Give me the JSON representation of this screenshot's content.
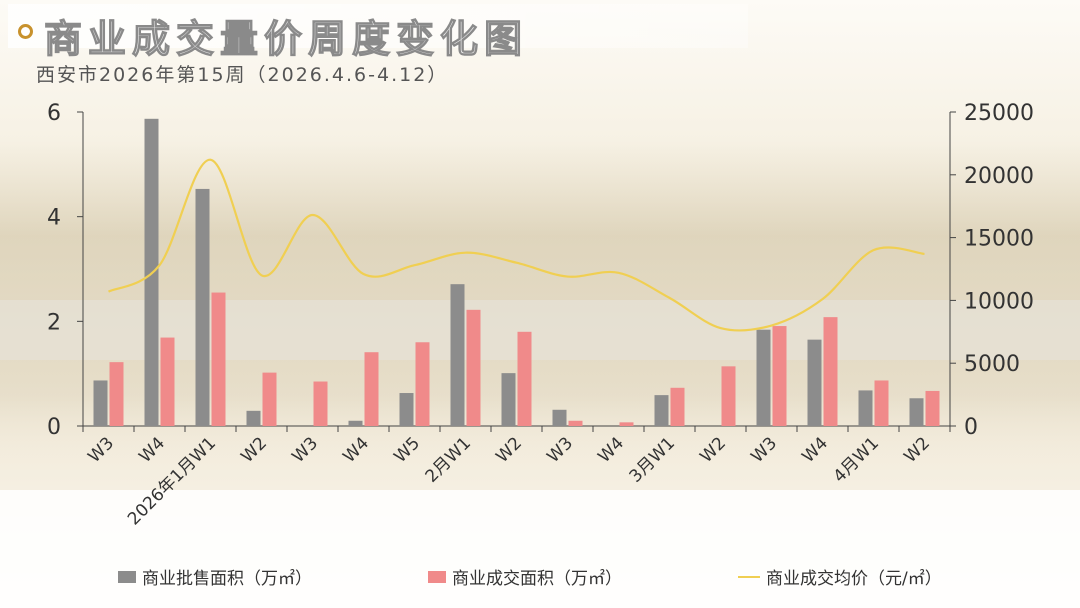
{
  "header": {
    "title": "商业成交量价周度变化图",
    "subtitle": "西安市2026年第15周（2026.4.6-4.12）"
  },
  "colors": {
    "supply": "#8c8c8c",
    "deal": "#f08a8a",
    "price": "#f0cf52",
    "accent": "#c8922d"
  },
  "chart_data": {
    "type": "bar",
    "categories": [
      "W3",
      "W4",
      "2026年1月W1",
      "W2",
      "W3",
      "W4",
      "W5",
      "2月W1",
      "W2",
      "W3",
      "W4",
      "3月W1",
      "W2",
      "W3",
      "W4",
      "4月W1",
      "W2"
    ],
    "series": [
      {
        "name": "商业批售面积（万㎡）",
        "type": "bar",
        "axis": "left",
        "values": [
          0.87,
          5.87,
          4.53,
          0.29,
          0,
          0.1,
          0.63,
          2.71,
          1.01,
          0.31,
          0,
          0.59,
          0,
          1.84,
          1.65,
          0.68,
          0.53
        ]
      },
      {
        "name": "商业成交面积（万㎡）",
        "type": "bar",
        "axis": "left",
        "values": [
          1.22,
          1.69,
          2.55,
          1.02,
          0.85,
          1.41,
          1.6,
          2.22,
          1.8,
          0.1,
          0.07,
          0.73,
          1.14,
          1.91,
          2.08,
          0.87,
          0.67
        ]
      },
      {
        "name": "商业成交均价（元/㎡）",
        "type": "line",
        "axis": "right",
        "values": [
          10700,
          12800,
          21200,
          12000,
          16800,
          12100,
          12800,
          13800,
          13000,
          11900,
          12200,
          10200,
          7800,
          8000,
          10100,
          14000,
          13700
        ]
      }
    ],
    "y_left": {
      "min": 0,
      "max": 6,
      "ticks": [
        0,
        2,
        4,
        6
      ]
    },
    "y_right": {
      "min": 0,
      "max": 25000,
      "ticks": [
        0,
        5000,
        10000,
        15000,
        20000,
        25000
      ]
    },
    "grid": false,
    "legend_position": "bottom"
  }
}
